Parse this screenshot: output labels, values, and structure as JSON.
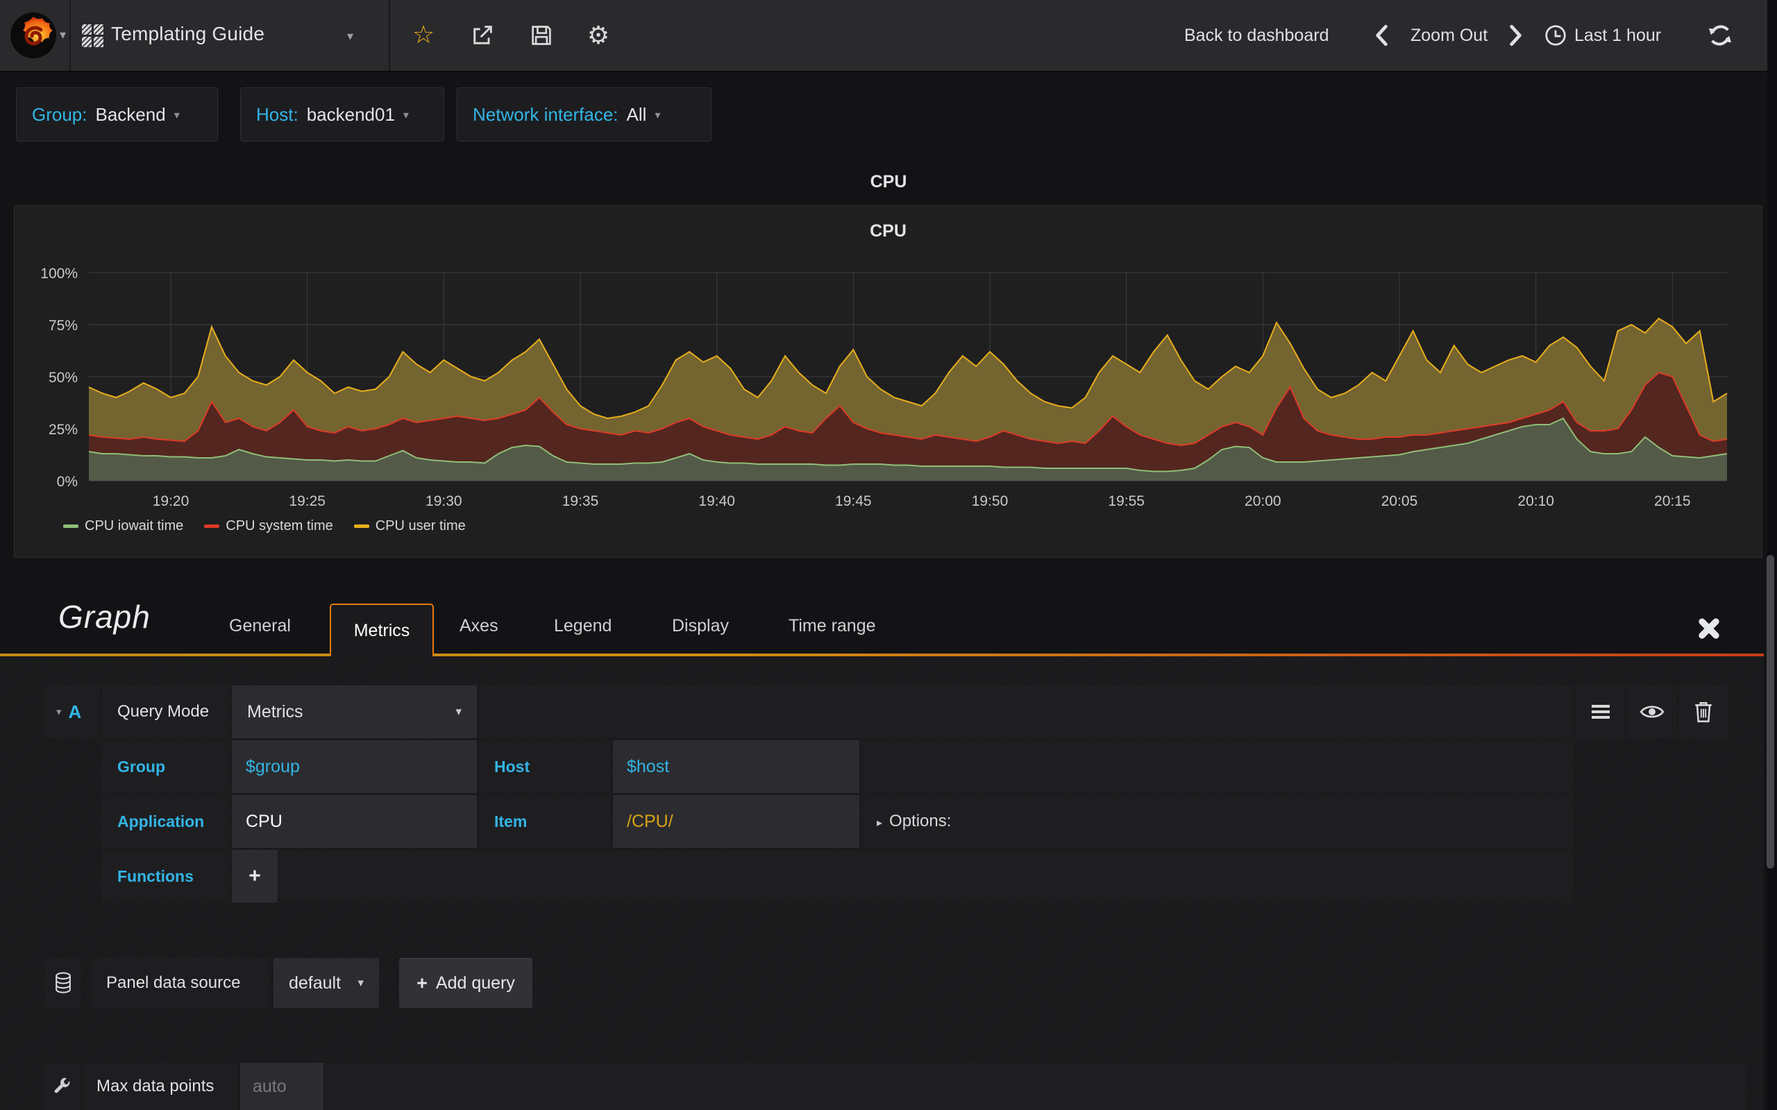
{
  "icons": {
    "caret_down": "▾",
    "caret_right": "▸",
    "star": "☆",
    "gear": "⚙",
    "plus": "+"
  },
  "colors": {
    "accent_blue": "#33b5e5",
    "nav_background": "#2a2a2d",
    "panel_background": "#1f1f20",
    "tab_active_border": "#e87a12",
    "item_value_yellow": "#d9a514",
    "star_yellow": "#e8b018"
  },
  "navbar": {
    "dashboard_title": "Templating Guide",
    "back_to_dashboard": "Back to dashboard",
    "zoom_out": "Zoom Out",
    "time_range": "Last 1 hour"
  },
  "variables": [
    {
      "label": "Group:",
      "value": "Backend"
    },
    {
      "label": "Host:",
      "value": "backend01"
    },
    {
      "label": "Network interface:",
      "value": "All"
    }
  ],
  "page_panel_title": "CPU",
  "chart_data": {
    "type": "area",
    "stacked": true,
    "title": "CPU",
    "xlabel": "",
    "ylabel": "",
    "ylim": [
      0,
      100
    ],
    "grid": true,
    "legend_position": "bottom",
    "x_start": "19:17",
    "x_end": "20:17",
    "x_interval_seconds": 30,
    "x_ticks": [
      "19:20",
      "19:25",
      "19:30",
      "19:35",
      "19:40",
      "19:45",
      "19:50",
      "19:55",
      "20:00",
      "20:05",
      "20:10",
      "20:15"
    ],
    "y_ticks": [
      "0%",
      "25%",
      "50%",
      "75%",
      "100%"
    ],
    "y_tick_values": [
      0,
      25,
      50,
      75,
      100
    ],
    "series": [
      {
        "name": "CPU iowait time",
        "color": "#8fbf78",
        "fill": "#545a48",
        "values": [
          14,
          13,
          13,
          12.5,
          12,
          12,
          11.5,
          11.5,
          11,
          11,
          12,
          15,
          13,
          11.5,
          11,
          10.5,
          10,
          10,
          9.5,
          10,
          9.5,
          9.5,
          12,
          14.5,
          11,
          10,
          9.5,
          9,
          9,
          8.5,
          13,
          16,
          17,
          16.5,
          12,
          9,
          8.5,
          8,
          8,
          8,
          8.5,
          8.5,
          9,
          11,
          13,
          10,
          9,
          8.5,
          8.5,
          8,
          8,
          8,
          8,
          8,
          7.5,
          7.5,
          8,
          8,
          8,
          7.5,
          7.5,
          7,
          7,
          7,
          7,
          7,
          7,
          6.5,
          6.5,
          6.5,
          6,
          6,
          6,
          6,
          6,
          6,
          6,
          5,
          4.5,
          4.5,
          5,
          6,
          10,
          15,
          16.5,
          16,
          11,
          9,
          9,
          9,
          9.5,
          10,
          10.5,
          11,
          11.5,
          12,
          12.5,
          14,
          15,
          16,
          17,
          18,
          20,
          22,
          24,
          26,
          27,
          27,
          30,
          20,
          14,
          13,
          13,
          14,
          21,
          16,
          12,
          11.5,
          11,
          12,
          13
        ]
      },
      {
        "name": "CPU system time",
        "color": "#dc3b28",
        "fill": "#542620",
        "values": [
          8,
          8,
          7.5,
          7.5,
          9,
          8,
          8,
          7.5,
          13,
          27,
          16,
          15,
          13,
          12.5,
          17,
          23.5,
          16,
          14,
          13.5,
          16,
          14.5,
          15.5,
          15,
          15.5,
          17,
          19,
          20.5,
          22,
          21,
          20.5,
          17,
          16,
          17,
          23.5,
          21,
          18,
          16.5,
          16,
          15,
          14,
          15.5,
          14.5,
          16,
          17,
          17,
          16,
          15,
          13.5,
          12.5,
          12,
          14,
          18,
          16,
          15,
          22.5,
          28.5,
          20,
          17,
          15,
          14.5,
          13.5,
          13,
          15,
          14,
          13,
          12,
          14,
          17.5,
          15.5,
          13.5,
          13,
          12,
          13,
          12,
          18,
          25,
          20,
          17,
          15.5,
          13.5,
          12,
          12,
          12,
          11,
          11.5,
          10,
          11,
          26,
          36,
          21,
          14.5,
          12,
          10.5,
          9,
          8.5,
          9,
          8.5,
          8,
          7,
          7,
          7,
          7,
          6,
          5,
          4,
          4,
          5,
          7,
          8,
          8,
          10,
          11,
          12,
          20,
          25,
          36,
          38,
          24.5,
          11,
          7,
          7
        ]
      },
      {
        "name": "CPU user time",
        "color": "#e8ae1c",
        "fill": "#746430",
        "values": [
          23,
          21,
          19.5,
          23,
          26,
          24,
          20.5,
          23,
          26,
          36,
          32,
          22,
          22,
          22,
          22,
          24,
          26,
          24,
          19,
          19,
          19,
          19,
          23,
          32,
          28,
          23,
          28,
          23,
          20,
          19,
          22,
          26,
          28,
          28,
          23,
          17,
          11,
          8,
          7,
          9,
          9,
          13,
          21,
          30,
          32,
          31,
          36,
          32,
          23,
          20,
          26,
          34,
          28,
          23,
          12,
          19,
          35,
          25,
          21,
          18,
          17,
          16,
          20,
          31,
          40,
          36,
          41,
          32,
          26,
          22,
          19,
          18,
          16,
          22,
          28,
          29,
          30,
          30,
          42,
          52,
          41,
          30,
          22,
          24,
          27,
          26,
          38,
          41,
          21,
          24,
          20,
          18,
          21,
          26,
          32,
          27,
          39,
          50,
          36,
          29,
          41,
          31,
          26,
          28,
          30,
          30,
          25,
          31,
          31,
          36,
          31,
          24,
          47,
          41,
          25,
          26,
          24,
          30,
          50,
          19,
          22
        ]
      }
    ]
  },
  "editor": {
    "title": "Graph",
    "tabs": [
      "General",
      "Metrics",
      "Axes",
      "Legend",
      "Display",
      "Time range"
    ],
    "active_tab": "Metrics",
    "query": {
      "letter": "A",
      "mode_label": "Query Mode",
      "mode_value": "Metrics",
      "rows": [
        {
          "label": "Group",
          "value": "$group"
        },
        {
          "label": "Host",
          "value": "$host"
        },
        {
          "label": "Application",
          "value": "CPU"
        },
        {
          "label": "Item",
          "value": "/CPU/"
        }
      ],
      "options_label": "Options:",
      "functions_label": "Functions"
    },
    "datasource": {
      "label": "Panel data source",
      "value": "default",
      "add_query_label": "Add query"
    },
    "max_data_points": {
      "label": "Max data points",
      "placeholder": "auto"
    }
  }
}
